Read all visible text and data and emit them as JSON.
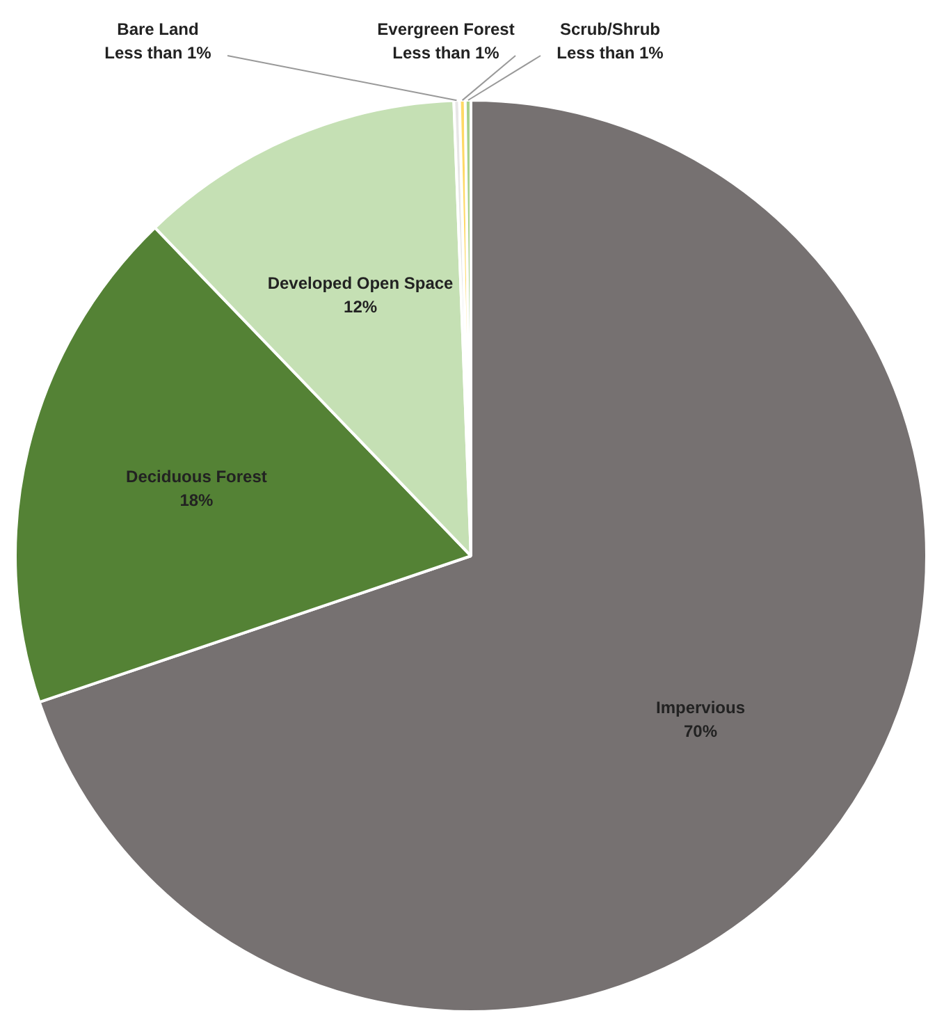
{
  "chart_data": {
    "type": "pie",
    "categories": [
      "Impervious",
      "Deciduous Forest",
      "Developed Open Space",
      "Bare Land",
      "Evergreen Forest",
      "Scrub/Shrub"
    ],
    "values": [
      69.8,
      18,
      11.6,
      0.2,
      0.2,
      0.2
    ],
    "colors": [
      "#767171",
      "#548235",
      "#c5e0b4",
      "#e7e6e6",
      "#ffd966",
      "#a9d18e"
    ],
    "value_labels": [
      "70%",
      "18%",
      "12%",
      "Less than 1%",
      "Less than 1%",
      "Less than 1%"
    ],
    "legend": false
  }
}
